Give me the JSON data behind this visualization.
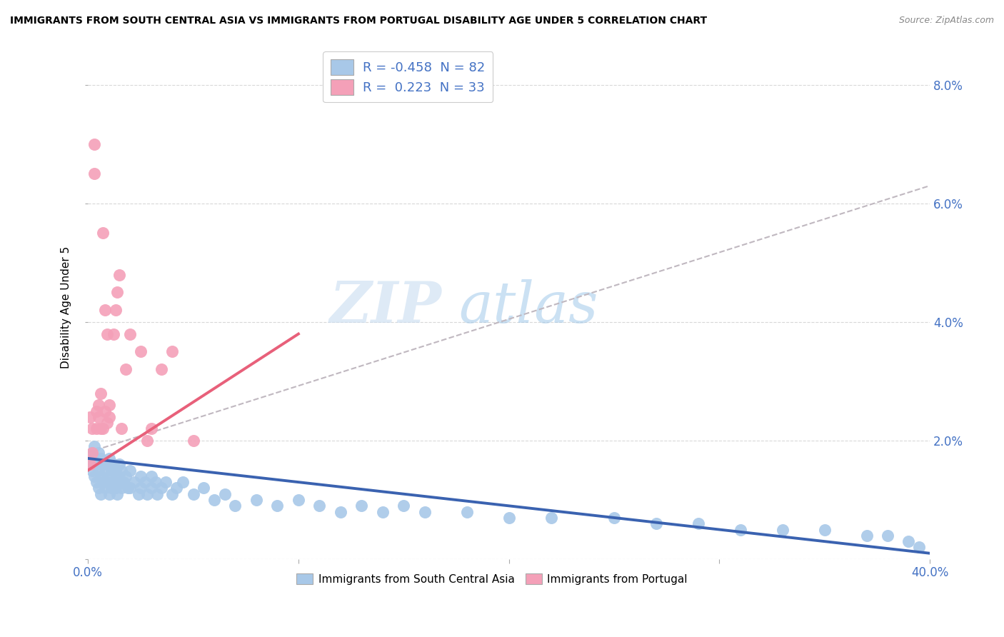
{
  "title": "IMMIGRANTS FROM SOUTH CENTRAL ASIA VS IMMIGRANTS FROM PORTUGAL DISABILITY AGE UNDER 5 CORRELATION CHART",
  "source": "Source: ZipAtlas.com",
  "xlabel_blue": "Immigrants from South Central Asia",
  "xlabel_pink": "Immigrants from Portugal",
  "ylabel": "Disability Age Under 5",
  "xlim": [
    0.0,
    0.4
  ],
  "ylim": [
    0.0,
    0.085
  ],
  "xticks": [
    0.0,
    0.1,
    0.2,
    0.3,
    0.4
  ],
  "yticks": [
    0.0,
    0.02,
    0.04,
    0.06,
    0.08
  ],
  "legend_blue_R": "-0.458",
  "legend_blue_N": "82",
  "legend_pink_R": "0.223",
  "legend_pink_N": "33",
  "blue_color": "#A8C8E8",
  "pink_color": "#F4A0B8",
  "blue_line_color": "#3A62B0",
  "pink_line_color": "#E8607A",
  "dashed_line_color": "#C0B8C0",
  "watermark_zip": "ZIP",
  "watermark_atlas": "atlas",
  "blue_scatter_x": [
    0.001,
    0.002,
    0.002,
    0.003,
    0.003,
    0.003,
    0.004,
    0.004,
    0.005,
    0.005,
    0.005,
    0.006,
    0.006,
    0.006,
    0.007,
    0.007,
    0.008,
    0.008,
    0.009,
    0.009,
    0.01,
    0.01,
    0.01,
    0.011,
    0.011,
    0.012,
    0.012,
    0.013,
    0.013,
    0.014,
    0.014,
    0.015,
    0.015,
    0.016,
    0.016,
    0.017,
    0.018,
    0.019,
    0.02,
    0.02,
    0.022,
    0.024,
    0.025,
    0.025,
    0.027,
    0.028,
    0.03,
    0.03,
    0.032,
    0.033,
    0.035,
    0.037,
    0.04,
    0.042,
    0.045,
    0.05,
    0.055,
    0.06,
    0.065,
    0.07,
    0.08,
    0.09,
    0.1,
    0.11,
    0.12,
    0.13,
    0.14,
    0.15,
    0.16,
    0.18,
    0.2,
    0.22,
    0.25,
    0.27,
    0.29,
    0.31,
    0.33,
    0.35,
    0.37,
    0.38,
    0.39,
    0.395
  ],
  "blue_scatter_y": [
    0.016,
    0.018,
    0.015,
    0.019,
    0.017,
    0.014,
    0.016,
    0.013,
    0.018,
    0.015,
    0.012,
    0.017,
    0.014,
    0.011,
    0.016,
    0.013,
    0.015,
    0.012,
    0.016,
    0.013,
    0.017,
    0.014,
    0.011,
    0.015,
    0.012,
    0.016,
    0.013,
    0.015,
    0.012,
    0.014,
    0.011,
    0.013,
    0.016,
    0.012,
    0.015,
    0.013,
    0.014,
    0.012,
    0.015,
    0.012,
    0.013,
    0.011,
    0.014,
    0.012,
    0.013,
    0.011,
    0.014,
    0.012,
    0.013,
    0.011,
    0.012,
    0.013,
    0.011,
    0.012,
    0.013,
    0.011,
    0.012,
    0.01,
    0.011,
    0.009,
    0.01,
    0.009,
    0.01,
    0.009,
    0.008,
    0.009,
    0.008,
    0.009,
    0.008,
    0.008,
    0.007,
    0.007,
    0.007,
    0.006,
    0.006,
    0.005,
    0.005,
    0.005,
    0.004,
    0.004,
    0.003,
    0.002
  ],
  "pink_scatter_x": [
    0.001,
    0.001,
    0.002,
    0.002,
    0.003,
    0.003,
    0.004,
    0.004,
    0.005,
    0.005,
    0.006,
    0.006,
    0.007,
    0.007,
    0.008,
    0.008,
    0.009,
    0.009,
    0.01,
    0.01,
    0.012,
    0.013,
    0.014,
    0.015,
    0.016,
    0.018,
    0.02,
    0.025,
    0.028,
    0.03,
    0.035,
    0.04,
    0.05
  ],
  "pink_scatter_y": [
    0.016,
    0.024,
    0.018,
    0.022,
    0.07,
    0.065,
    0.025,
    0.022,
    0.026,
    0.024,
    0.028,
    0.022,
    0.055,
    0.022,
    0.042,
    0.025,
    0.038,
    0.023,
    0.026,
    0.024,
    0.038,
    0.042,
    0.045,
    0.048,
    0.022,
    0.032,
    0.038,
    0.035,
    0.02,
    0.022,
    0.032,
    0.035,
    0.02
  ],
  "blue_trend_x": [
    0.0,
    0.4
  ],
  "blue_trend_y": [
    0.017,
    0.001
  ],
  "pink_trend_x": [
    0.0,
    0.1
  ],
  "pink_trend_y": [
    0.015,
    0.038
  ],
  "dashed_trend_x": [
    0.0,
    0.4
  ],
  "dashed_trend_y": [
    0.018,
    0.063
  ],
  "background_color": "#FFFFFF",
  "grid_color": "#D8D8D8"
}
